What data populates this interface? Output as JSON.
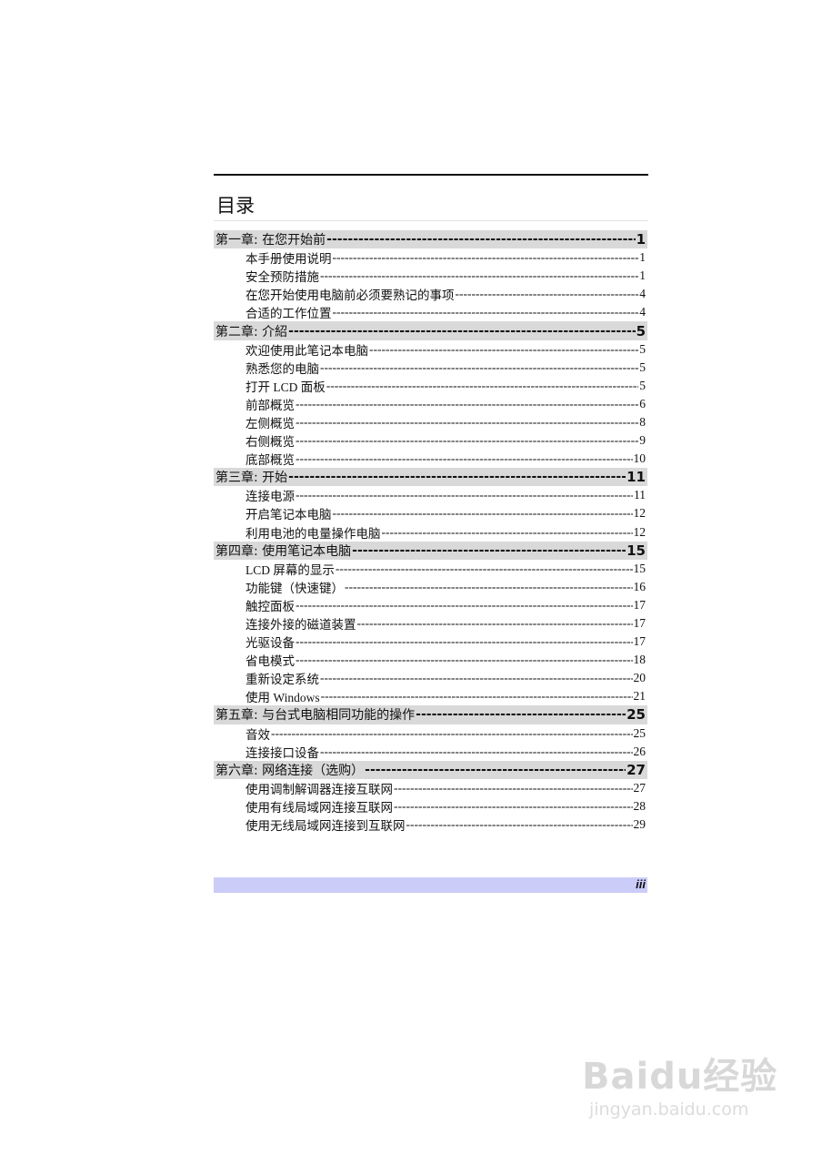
{
  "title": "目录",
  "chapters": [
    {
      "label": "第一章: 在您开始前",
      "page": "1",
      "items": [
        {
          "label": "本手册使用说明",
          "page": "1"
        },
        {
          "label": "安全预防措施",
          "page": "1"
        },
        {
          "label": "在您开始使用电脑前必须要熟记的事项",
          "page": "4"
        },
        {
          "label": "合适的工作位置",
          "page": "4"
        }
      ]
    },
    {
      "label": "第二章: 介紹",
      "page": "5",
      "items": [
        {
          "label": "欢迎使用此笔记本电脑",
          "page": "5"
        },
        {
          "label": "熟悉您的电脑",
          "page": "5"
        },
        {
          "label": "打开 LCD 面板",
          "page": "5"
        },
        {
          "label": "前部概览",
          "page": "6"
        },
        {
          "label": "左侧概览",
          "page": "8"
        },
        {
          "label": "右侧概览",
          "page": "9"
        },
        {
          "label": "底部概览",
          "page": "10"
        }
      ]
    },
    {
      "label": "第三章: 开始",
      "page": "11",
      "items": [
        {
          "label": "连接电源",
          "page": "11"
        },
        {
          "label": "开启笔记本电脑",
          "page": "12"
        },
        {
          "label": "利用电池的电量操作电脑",
          "page": "12"
        }
      ]
    },
    {
      "label": "第四章: 使用笔记本电脑",
      "page": "15",
      "items": [
        {
          "label": "LCD 屏幕的显示",
          "page": "15"
        },
        {
          "label": "功能键（快速键）",
          "page": "16"
        },
        {
          "label": "触控面板",
          "page": "17"
        },
        {
          "label": "连接外接的磁道装置",
          "page": "17"
        },
        {
          "label": "光驱设备",
          "page": "17"
        },
        {
          "label": "省电模式",
          "page": "18"
        },
        {
          "label": "重新设定系统",
          "page": "20"
        },
        {
          "label": "使用 Windows",
          "page": "21"
        }
      ]
    },
    {
      "label": "第五章: 与台式电脑相同功能的操作",
      "page": "25",
      "items": [
        {
          "label": "音效",
          "page": "25"
        },
        {
          "label": "连接接口设备",
          "page": "26"
        }
      ]
    },
    {
      "label": "第六章: 网络连接（选购）",
      "page": "27",
      "items": [
        {
          "label": "使用调制解调器连接互联网",
          "page": "27"
        },
        {
          "label": "使用有线局域网连接互联网",
          "page": "28"
        },
        {
          "label": "使用无线局域网连接到互联网",
          "page": "29"
        }
      ]
    }
  ],
  "footer": {
    "page_number": "iii",
    "bar_color": "#ccccf8"
  },
  "watermark": {
    "logo": "Baidu经验",
    "url": "jingyan.baidu.com"
  }
}
